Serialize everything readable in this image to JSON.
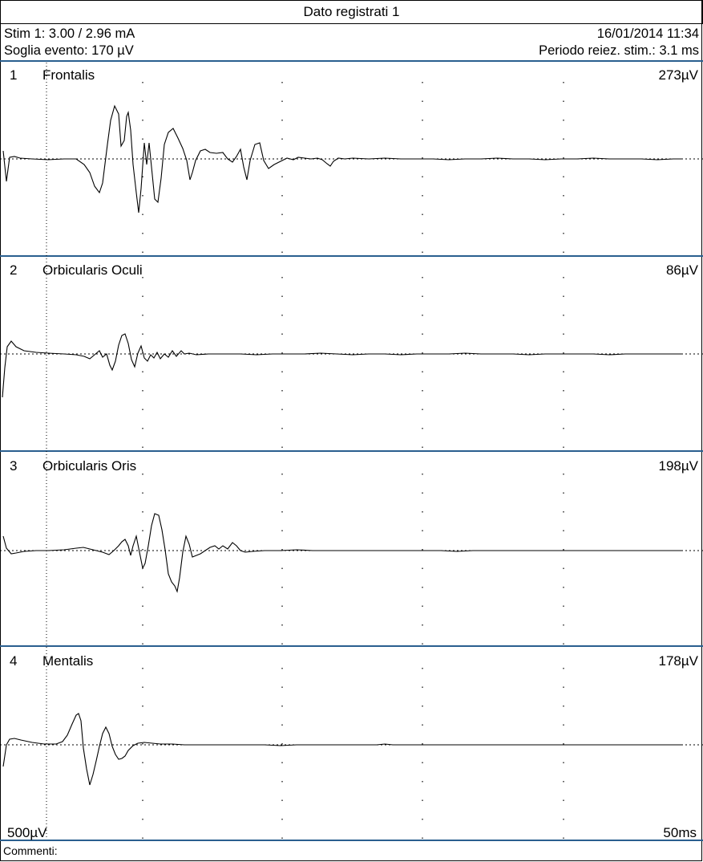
{
  "window": {
    "title": "Dato registrati 1"
  },
  "header": {
    "stim": "Stim 1: 3.00 / 2.96 mA",
    "datetime": "16/01/2014 11:34",
    "threshold": "Soglia evento: 170 µV",
    "rejection": "Periodo reiez. stim.: 3.1 ms"
  },
  "channels": [
    {
      "number": "1",
      "name": "Frontalis",
      "scale": "273µV"
    },
    {
      "number": "2",
      "name": "Orbicularis Oculi",
      "scale": "86µV"
    },
    {
      "number": "3",
      "name": "Orbicularis Oris",
      "scale": "198µV"
    },
    {
      "number": "4",
      "name": "Mentalis",
      "scale": "178µV"
    }
  ],
  "footer": {
    "amplitude_scale": "500µV",
    "time_scale": "50ms",
    "comments_label": "Commenti:"
  },
  "colors": {
    "panel_divider": "#2a5f8f",
    "trace": "#000000"
  }
}
